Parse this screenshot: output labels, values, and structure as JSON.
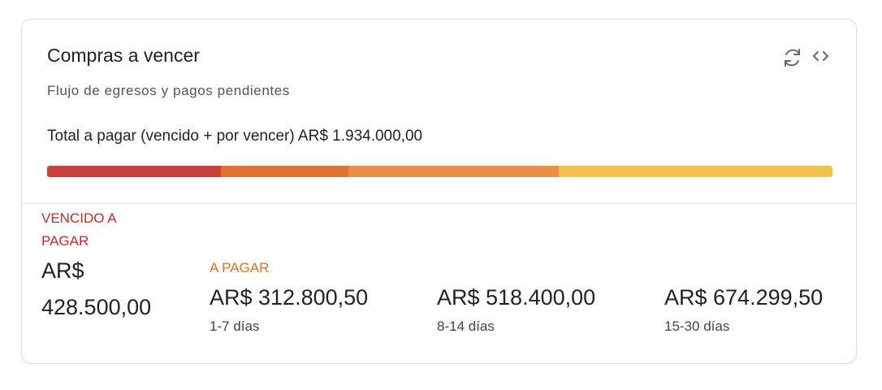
{
  "header": {
    "title": "Compras a vencer",
    "subtitle": "Flujo de egresos y pagos pendientes"
  },
  "total": "Total a pagar (vencido + por vencer) AR$ 1.934.000,00",
  "segments": [
    {
      "heading": "VENCIDO A PAGAR",
      "value": 428500,
      "value_label": "AR$ 428.500,00",
      "color": "#c8413b"
    },
    {
      "heading": "A PAGAR",
      "value": 312800.5,
      "value_label": "AR$ 312.800,50",
      "range": "1-7 días",
      "color": "#e07432"
    },
    {
      "value": 518400,
      "value_label": "AR$ 518.400,00",
      "range": "8-14 días",
      "color": "#ea9048"
    },
    {
      "value": 674299.5,
      "value_label": "AR$ 674.299,50",
      "range": "15-30 días",
      "color": "#f0c34c"
    }
  ]
}
